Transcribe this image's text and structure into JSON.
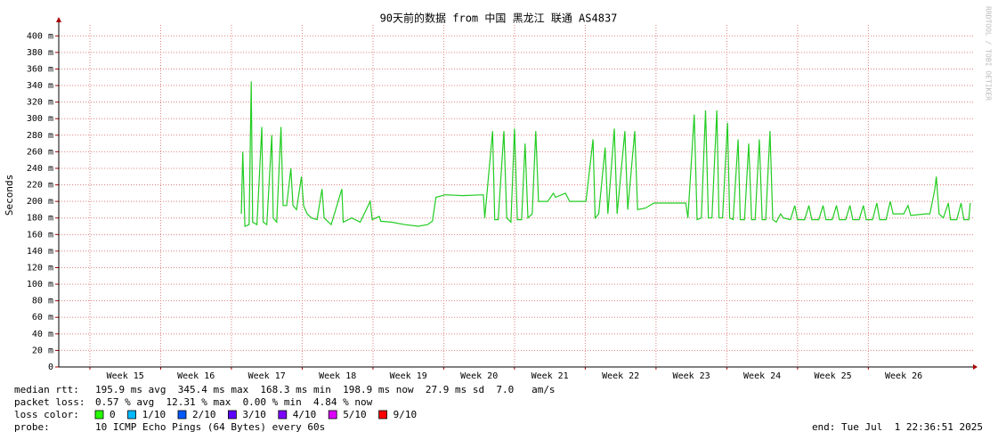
{
  "chart_data": {
    "type": "line",
    "title": "90天前的数据 from 中国 黑龙江 联通 AS4837",
    "y_label": "Seconds",
    "watermark": "RRDTOOL / TOBI OETIKER",
    "xlim": [
      14.56,
      27.48
    ],
    "ylim": [
      0,
      410
    ],
    "xticks": [
      {
        "value": 15,
        "label": "Week 15"
      },
      {
        "value": 16,
        "label": "Week 16"
      },
      {
        "value": 17,
        "label": "Week 17"
      },
      {
        "value": 18,
        "label": "Week 18"
      },
      {
        "value": 19,
        "label": "Week 19"
      },
      {
        "value": 20,
        "label": "Week 20"
      },
      {
        "value": 21,
        "label": "Week 21"
      },
      {
        "value": 22,
        "label": "Week 22"
      },
      {
        "value": 23,
        "label": "Week 23"
      },
      {
        "value": 24,
        "label": "Week 24"
      },
      {
        "value": 25,
        "label": "Week 25"
      },
      {
        "value": 26,
        "label": "Week 26"
      }
    ],
    "yticks": [
      0,
      {
        "value": 20,
        "label": "20 m"
      },
      {
        "value": 40,
        "label": "40 m"
      },
      {
        "value": 60,
        "label": "60 m"
      },
      {
        "value": 80,
        "label": "80 m"
      },
      {
        "value": 100,
        "label": "100 m"
      },
      {
        "value": 120,
        "label": "120 m"
      },
      {
        "value": 140,
        "label": "140 m"
      },
      {
        "value": 160,
        "label": "160 m"
      },
      {
        "value": 180,
        "label": "180 m"
      },
      {
        "value": 200,
        "label": "200 m"
      },
      {
        "value": 220,
        "label": "220 m"
      },
      {
        "value": 240,
        "label": "240 m"
      },
      {
        "value": 260,
        "label": "260 m"
      },
      {
        "value": 280,
        "label": "280 m"
      },
      {
        "value": 300,
        "label": "300 m"
      },
      {
        "value": 320,
        "label": "320 m"
      },
      {
        "value": 340,
        "label": "340 m"
      },
      {
        "value": 360,
        "label": "360 m"
      },
      {
        "value": 380,
        "label": "380 m"
      },
      {
        "value": 400,
        "label": "400 m"
      }
    ],
    "grid": true,
    "x": [
      17.14,
      17.16,
      17.19,
      17.25,
      17.28,
      17.3,
      17.36,
      17.43,
      17.45,
      17.5,
      17.57,
      17.59,
      17.64,
      17.7,
      17.73,
      17.78,
      17.84,
      17.87,
      17.92,
      17.99,
      18.02,
      18.07,
      18.13,
      18.21,
      18.28,
      18.31,
      18.41,
      18.56,
      18.58,
      18.7,
      18.82,
      18.96,
      18.99,
      19.09,
      19.11,
      19.26,
      19.45,
      19.64,
      19.77,
      19.84,
      19.89,
      20.02,
      20.27,
      20.56,
      20.58,
      20.69,
      20.72,
      20.77,
      20.85,
      20.89,
      20.95,
      21.0,
      21.04,
      21.1,
      21.15,
      21.19,
      21.25,
      21.3,
      21.34,
      21.47,
      21.55,
      21.58,
      21.72,
      21.78,
      22.01,
      22.11,
      22.14,
      22.19,
      22.28,
      22.32,
      22.41,
      22.45,
      22.56,
      22.6,
      22.7,
      22.74,
      22.85,
      22.97,
      23.1,
      23.42,
      23.45,
      23.54,
      23.58,
      23.64,
      23.7,
      23.74,
      23.79,
      23.86,
      23.89,
      23.94,
      24.01,
      24.04,
      24.09,
      24.16,
      24.19,
      24.25,
      24.31,
      24.35,
      24.4,
      24.46,
      24.5,
      24.55,
      24.61,
      24.65,
      24.7,
      24.76,
      24.8,
      24.9,
      24.96,
      25.0,
      25.1,
      25.16,
      25.2,
      25.3,
      25.36,
      25.4,
      25.49,
      25.55,
      25.59,
      25.68,
      25.74,
      25.78,
      25.87,
      25.93,
      25.97,
      26.06,
      26.12,
      26.16,
      26.25,
      26.31,
      26.35,
      26.5,
      26.56,
      26.6,
      26.81,
      26.87,
      26.94,
      26.96,
      27.0,
      27.06,
      27.13,
      27.16,
      27.25,
      27.31,
      27.35,
      27.42,
      27.44
    ],
    "series": [
      {
        "color": "#22cc22",
        "values": [
          185,
          260,
          170,
          172,
          345,
          175,
          172,
          290,
          175,
          172,
          280,
          180,
          175,
          290,
          195,
          195,
          240,
          195,
          190,
          230,
          195,
          185,
          180,
          178,
          215,
          180,
          172,
          215,
          175,
          180,
          175,
          200,
          178,
          182,
          176,
          175,
          172,
          170,
          172,
          176,
          205,
          208,
          207,
          208,
          180,
          285,
          178,
          178,
          285,
          180,
          175,
          288,
          178,
          178,
          270,
          180,
          185,
          285,
          200,
          200,
          210,
          205,
          210,
          200,
          200,
          275,
          180,
          185,
          265,
          185,
          288,
          185,
          285,
          190,
          285,
          190,
          192,
          198,
          198,
          198,
          180,
          305,
          178,
          180,
          310,
          180,
          180,
          310,
          180,
          180,
          295,
          180,
          178,
          275,
          178,
          178,
          270,
          178,
          178,
          275,
          178,
          178,
          285,
          178,
          175,
          185,
          180,
          178,
          195,
          178,
          178,
          195,
          178,
          178,
          195,
          178,
          178,
          195,
          178,
          178,
          195,
          178,
          178,
          195,
          178,
          178,
          198,
          178,
          178,
          200,
          185,
          185,
          195,
          183,
          185,
          185,
          215,
          230,
          185,
          180,
          198,
          178,
          178,
          198,
          178,
          178,
          198
        ]
      }
    ],
    "stats": [
      {
        "label": "median rtt:",
        "text": "195.9 ms avg  345.4 ms max  168.3 ms min  198.9 ms now  27.9 ms sd  7.0   am/s"
      },
      {
        "label": "packet loss:",
        "text": "0.57 % avg  12.31 % max  0.00 % min  4.84 % now"
      }
    ],
    "loss_color_label": "loss color:",
    "loss_colors": [
      {
        "name": "0",
        "color": "#26ff00"
      },
      {
        "name": "1/10",
        "color": "#00b8ff"
      },
      {
        "name": "2/10",
        "color": "#0059ff"
      },
      {
        "name": "3/10",
        "color": "#5e00ff"
      },
      {
        "name": "4/10",
        "color": "#7e00ff"
      },
      {
        "name": "5/10",
        "color": "#dd00ff"
      },
      {
        "name": "9/10",
        "color": "#ff0000"
      }
    ],
    "probe_label": "probe:",
    "probe": "10 ICMP Echo Pings (64 Bytes) every 60s",
    "end": "end: Tue Jul  1 22:36:51 2025"
  }
}
